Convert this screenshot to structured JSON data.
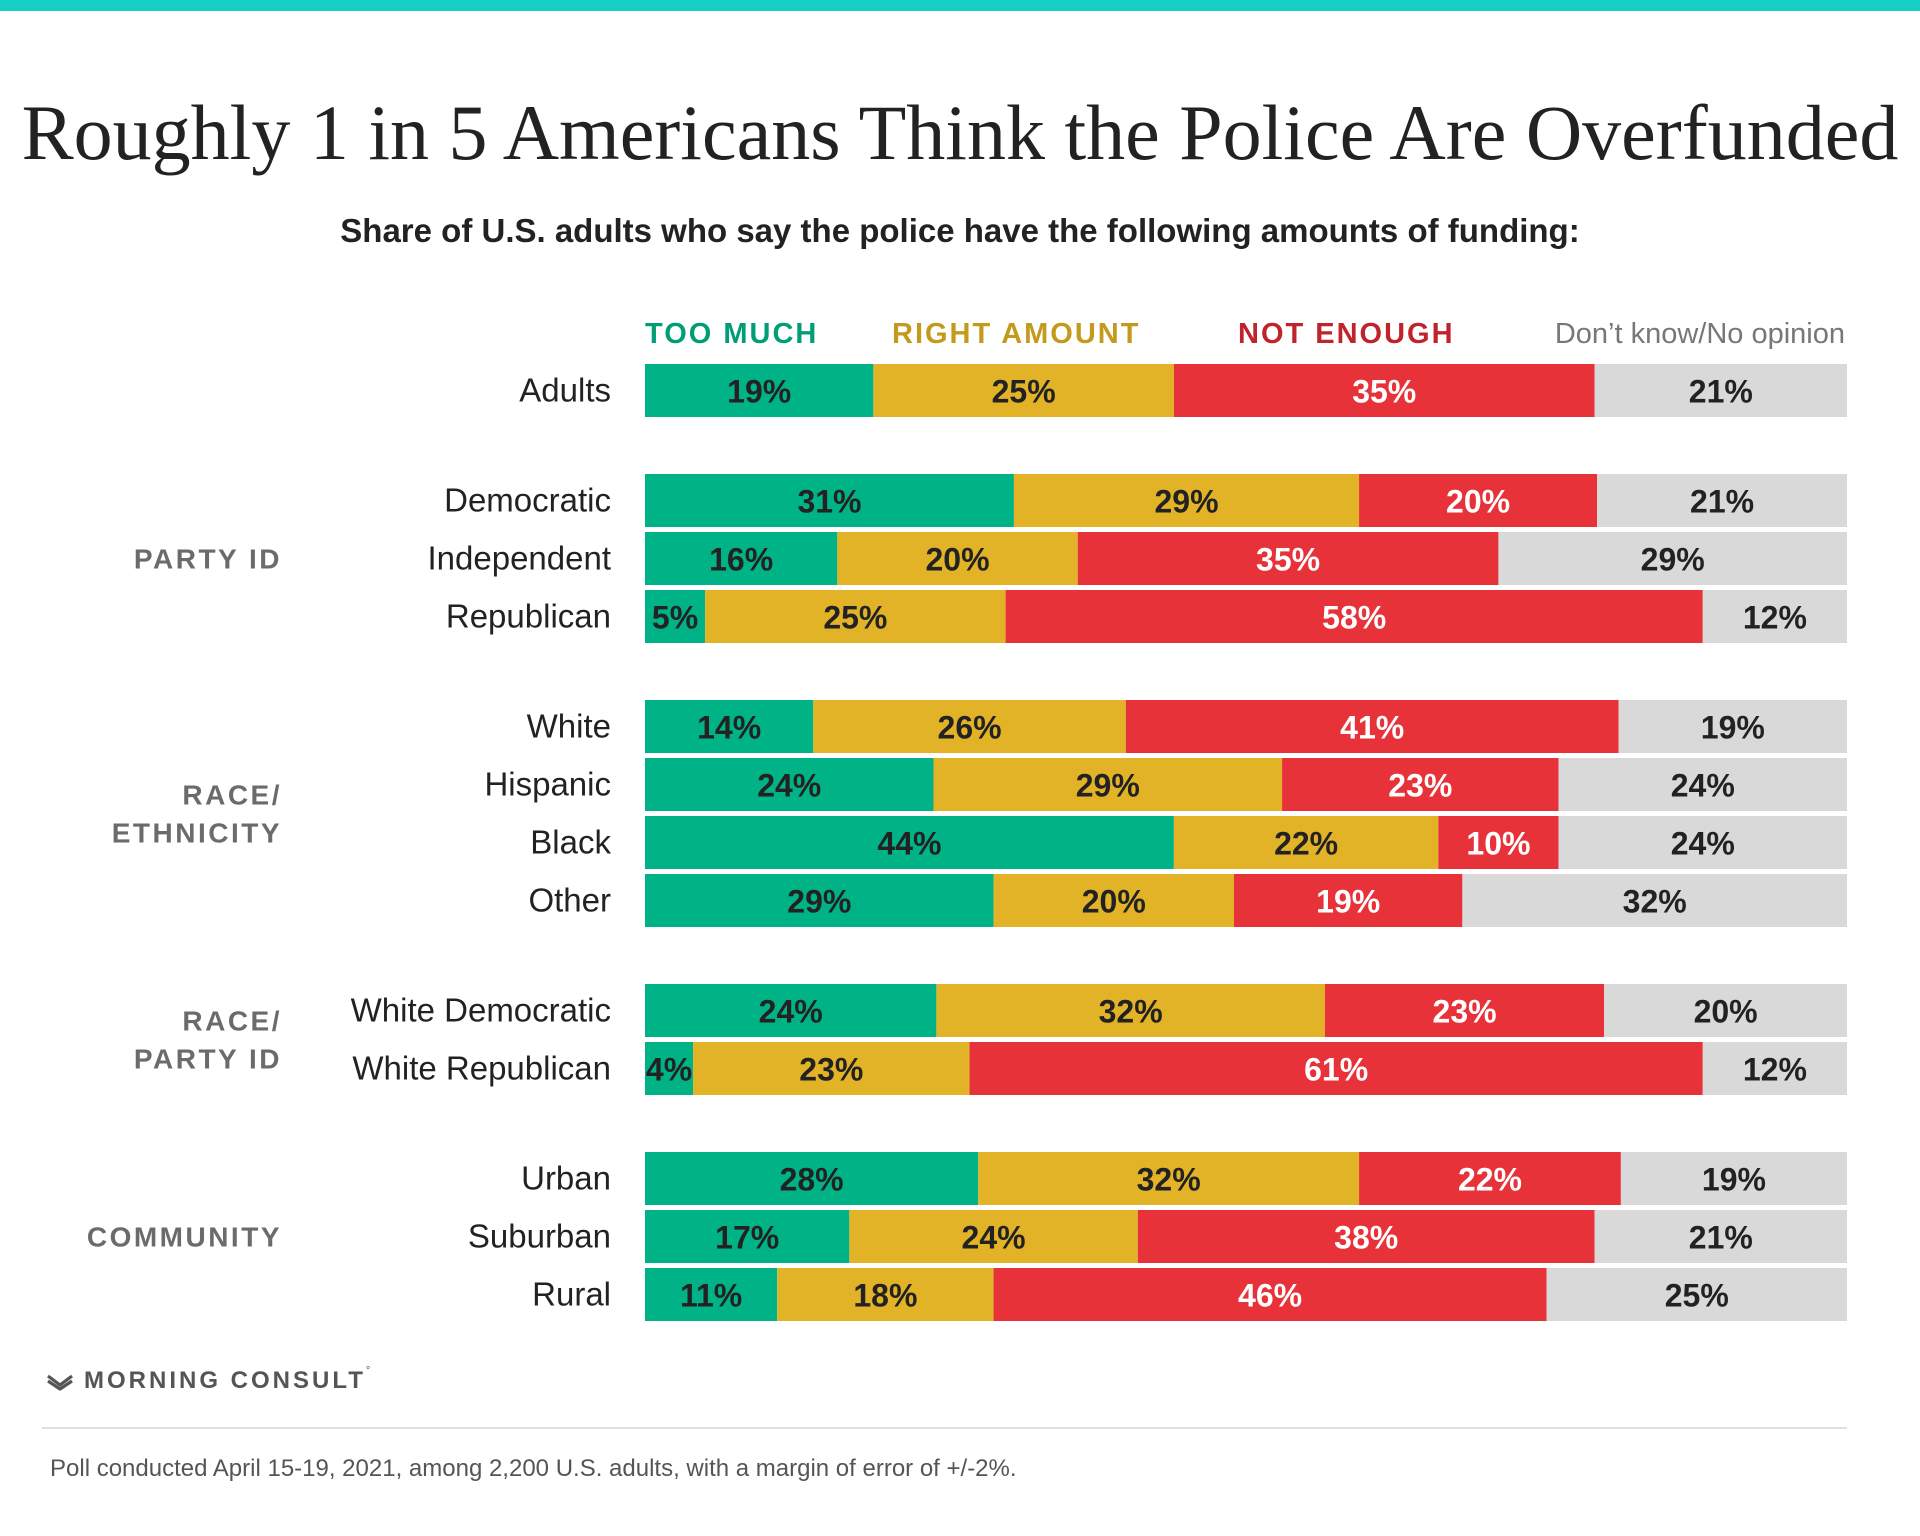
{
  "title": "Roughly 1 in 5 Americans Think the Police Are Overfunded",
  "subtitle": "Share of U.S. adults who say the police have the following amounts of funding:",
  "brand": "MORNING CONSULT",
  "brand_mark": "°",
  "footnote": "Poll conducted April 15-19, 2021, among 2,200 U.S. adults, with a margin of error of +/-2%.",
  "colors": {
    "top_bar": "#17cfc4",
    "too_much": "#00b386",
    "right_amount": "#e2b227",
    "not_enough": "#e8323a",
    "dont_know": "#d9d9d9",
    "legend_too_much": "#009e76",
    "legend_right_amount": "#c49a1c",
    "legend_not_enough": "#c0232b",
    "legend_dont_know": "#777777",
    "dark_text": "#222222",
    "light_text": "#ffffff"
  },
  "icons": {
    "brand_logo": "morning-consult-logo-icon"
  },
  "chart_data": {
    "type": "bar",
    "orientation": "horizontal",
    "stacked": true,
    "title": "Roughly 1 in 5 Americans Think the Police Are Overfunded",
    "subtitle": "Share of U.S. adults who say the police have the following amounts of funding:",
    "legend_position": "top",
    "xlim": [
      0,
      100
    ],
    "series": [
      {
        "key": "too_much",
        "name": "TOO MUCH"
      },
      {
        "key": "right_amount",
        "name": "RIGHT AMOUNT"
      },
      {
        "key": "not_enough",
        "name": "NOT ENOUGH"
      },
      {
        "key": "dont_know",
        "name": "Don’t know/No opinion"
      }
    ],
    "groups": [
      {
        "label_lines": [],
        "rows": [
          {
            "label": "Adults",
            "values": [
              19,
              25,
              35,
              21
            ]
          }
        ]
      },
      {
        "label_lines": [
          "PARTY ID"
        ],
        "rows": [
          {
            "label": "Democratic",
            "values": [
              31,
              29,
              20,
              21
            ]
          },
          {
            "label": "Independent",
            "values": [
              16,
              20,
              35,
              29
            ]
          },
          {
            "label": "Republican",
            "values": [
              5,
              25,
              58,
              12
            ]
          }
        ]
      },
      {
        "label_lines": [
          "RACE/",
          "ETHNICITY"
        ],
        "rows": [
          {
            "label": "White",
            "values": [
              14,
              26,
              41,
              19
            ]
          },
          {
            "label": "Hispanic",
            "values": [
              24,
              29,
              23,
              24
            ]
          },
          {
            "label": "Black",
            "values": [
              44,
              22,
              10,
              24
            ]
          },
          {
            "label": "Other",
            "values": [
              29,
              20,
              19,
              32
            ]
          }
        ]
      },
      {
        "label_lines": [
          "RACE/",
          "PARTY ID"
        ],
        "rows": [
          {
            "label": "White Democratic",
            "values": [
              24,
              32,
              23,
              20
            ]
          },
          {
            "label": "White Republican",
            "values": [
              4,
              23,
              61,
              12
            ]
          }
        ]
      },
      {
        "label_lines": [
          "COMMUNITY"
        ],
        "rows": [
          {
            "label": "Urban",
            "values": [
              28,
              32,
              22,
              19
            ]
          },
          {
            "label": "Suburban",
            "values": [
              17,
              24,
              38,
              21
            ]
          },
          {
            "label": "Rural",
            "values": [
              11,
              18,
              46,
              25
            ]
          }
        ]
      }
    ]
  }
}
